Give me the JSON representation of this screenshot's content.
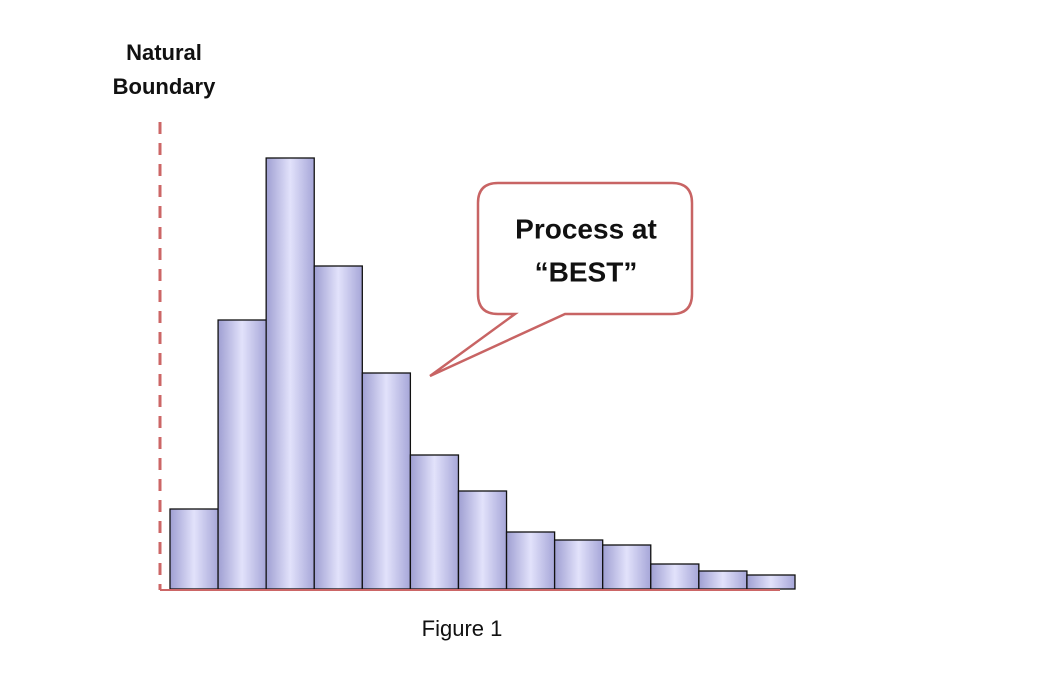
{
  "chart_data": {
    "type": "histogram",
    "annotations": {
      "boundary": [
        "Natural",
        "Boundary"
      ],
      "callout": [
        "Process at",
        "“BEST”"
      ]
    },
    "caption": "Figure 1",
    "bins": [
      0,
      1,
      2,
      3,
      4,
      5,
      6,
      7,
      8,
      9,
      10,
      11,
      12,
      13
    ],
    "counts": [
      80,
      269,
      431,
      323,
      216,
      134,
      98,
      57,
      49,
      44,
      25,
      18,
      14
    ],
    "color": "#b4b4e4",
    "xlim": [
      0,
      13
    ],
    "ylim": [
      0,
      450
    ]
  }
}
